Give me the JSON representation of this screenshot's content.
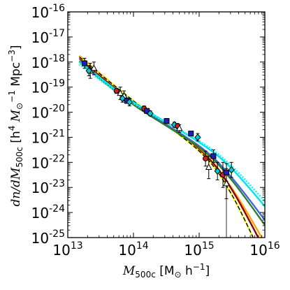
{
  "chart_data": {
    "type": "line",
    "title": "",
    "x_scale": "log",
    "y_scale": "log",
    "xlim": [
      10000000000000.0,
      1e+16
    ],
    "ylim": [
      1e-25,
      1e-16
    ],
    "xlabel": {
      "lead": "M",
      "sub": "500c",
      "open": " [M",
      "sun_sub": "⊙",
      "unit": " h",
      "exp": "−1",
      "close": "]"
    },
    "ylabel": {
      "lead": "dn/dM",
      "sub": "500c",
      "open": " [h",
      "h_exp": "4",
      "M": " M",
      "sun_sub": "⊙",
      "M_exp": "−1",
      "mid": " Mpc",
      "mpc_exp": "−3",
      "close": "]"
    },
    "x_ticks": [
      {
        "value": 10000000000000.0,
        "base": "10",
        "exp": "13"
      },
      {
        "value": 100000000000000.0,
        "base": "10",
        "exp": "14"
      },
      {
        "value": 1000000000000000.0,
        "base": "10",
        "exp": "15"
      },
      {
        "value": 1e+16,
        "base": "10",
        "exp": "16"
      }
    ],
    "y_ticks": [
      {
        "value": 1e-16,
        "base": "10",
        "exp": "-16"
      },
      {
        "value": 1e-17,
        "base": "10",
        "exp": "-17"
      },
      {
        "value": 1e-18,
        "base": "10",
        "exp": "-18"
      },
      {
        "value": 1e-19,
        "base": "10",
        "exp": "-19"
      },
      {
        "value": 1e-20,
        "base": "10",
        "exp": "-20"
      },
      {
        "value": 1e-21,
        "base": "10",
        "exp": "-21"
      },
      {
        "value": 1e-22,
        "base": "10",
        "exp": "-22"
      },
      {
        "value": 1e-23,
        "base": "10",
        "exp": "-23"
      },
      {
        "value": 1e-24,
        "base": "10",
        "exp": "-24"
      },
      {
        "value": 1e-25,
        "base": "10",
        "exp": "-25"
      }
    ],
    "grid": false,
    "legend": "none",
    "curves": [
      {
        "color": "#ffa500",
        "style": "solid",
        "points": [
          [
            15000000000000.0,
            -17.75
          ],
          [
            100000000000000.0,
            -19.55
          ],
          [
            1000000000000000.0,
            -21.45
          ],
          [
            3000000000000000.0,
            -22.95
          ],
          [
            1e+16,
            -25.2
          ]
        ]
      },
      {
        "color": "#8b0000",
        "style": "solid",
        "points": [
          [
            15000000000000.0,
            -17.85
          ],
          [
            100000000000000.0,
            -19.6
          ],
          [
            1000000000000000.0,
            -21.5
          ],
          [
            3000000000000000.0,
            -23.0
          ],
          [
            1e+16,
            -25.5
          ]
        ]
      },
      {
        "color": "#ffff00",
        "style": "dashed",
        "points": [
          [
            15000000000000.0,
            -17.8
          ],
          [
            100000000000000.0,
            -19.55
          ],
          [
            1000000000000000.0,
            -21.55
          ],
          [
            3000000000000000.0,
            -23.2
          ],
          [
            1e+16,
            -26.0
          ]
        ]
      },
      {
        "color": "#4169e1",
        "style": "solid",
        "points": [
          [
            15000000000000.0,
            -17.95
          ],
          [
            100000000000000.0,
            -19.65
          ],
          [
            1000000000000000.0,
            -21.35
          ],
          [
            3000000000000000.0,
            -22.55
          ],
          [
            1e+16,
            -24.3
          ]
        ]
      },
      {
        "color": "#2e7d32",
        "style": "solid",
        "points": [
          [
            15000000000000.0,
            -18.0
          ],
          [
            100000000000000.0,
            -19.7
          ],
          [
            1000000000000000.0,
            -21.4
          ],
          [
            3000000000000000.0,
            -22.65
          ],
          [
            1e+16,
            -24.5
          ]
        ]
      },
      {
        "color": "#00e5ee",
        "style": "solid",
        "points": [
          [
            15000000000000.0,
            -18.0
          ],
          [
            100000000000000.0,
            -19.6
          ],
          [
            1000000000000000.0,
            -21.2
          ],
          [
            3000000000000000.0,
            -22.2
          ],
          [
            1e+16,
            -23.75
          ]
        ]
      },
      {
        "color": "#00ffff",
        "style": "dotted",
        "points": [
          [
            15000000000000.0,
            -18.1
          ],
          [
            100000000000000.0,
            -19.65
          ],
          [
            1000000000000000.0,
            -21.15
          ],
          [
            3000000000000000.0,
            -22.1
          ],
          [
            1e+16,
            -23.55
          ]
        ]
      }
    ],
    "points": [
      {
        "series": "squares",
        "marker": "square",
        "color": "#1f1fbf",
        "x": 18000000000000.0,
        "y": -18.05,
        "err": 0.2
      },
      {
        "series": "triangles",
        "marker": "triangle",
        "color": "#ffffff",
        "x": 22000000000000.0,
        "y": -18.35,
        "err": 0.3
      },
      {
        "series": "triangles",
        "marker": "triangle",
        "color": "#ffffff",
        "x": 25000000000000.0,
        "y": -18.25,
        "err": 0.25
      },
      {
        "series": "diamonds",
        "marker": "diamond",
        "color": "#00cccc",
        "x": 21000000000000.0,
        "y": -18.35,
        "err": 0.2
      },
      {
        "series": "circles",
        "marker": "circle",
        "color": "#cc2222",
        "x": 55000000000000.0,
        "y": -19.15,
        "err": 0.1
      },
      {
        "series": "triangles",
        "marker": "triangle",
        "color": "#ffffff",
        "x": 63000000000000.0,
        "y": -19.25,
        "err": 0.25
      },
      {
        "series": "triangles",
        "marker": "triangle",
        "color": "#ffffff",
        "x": 72000000000000.0,
        "y": -19.35,
        "err": 0.2
      },
      {
        "series": "diamonds",
        "marker": "diamond",
        "color": "#00cccc",
        "x": 68000000000000.0,
        "y": -19.45,
        "err": 0.15
      },
      {
        "series": "squares",
        "marker": "square",
        "color": "#1f1fbf",
        "x": 80000000000000.0,
        "y": -19.55,
        "err": 0.1
      },
      {
        "series": "diamonds",
        "marker": "diamond",
        "color": "#00cccc",
        "x": 87000000000000.0,
        "y": -19.6,
        "err": 0.15
      },
      {
        "series": "circles",
        "marker": "circle",
        "color": "#cc2222",
        "x": 145000000000000.0,
        "y": -19.85,
        "err": 0.1
      },
      {
        "series": "squares",
        "marker": "square",
        "color": "#1f1fbf",
        "x": 160000000000000.0,
        "y": -19.95,
        "err": 0.1
      },
      {
        "series": "diamonds",
        "marker": "diamond",
        "color": "#00cccc",
        "x": 180000000000000.0,
        "y": -20.05,
        "err": 0.1
      },
      {
        "series": "squares",
        "marker": "square",
        "color": "#1f1fbf",
        "x": 320000000000000.0,
        "y": -20.35,
        "err": 0.1
      },
      {
        "series": "diamonds",
        "marker": "diamond",
        "color": "#00cccc",
        "x": 420000000000000.0,
        "y": -20.5,
        "err": 0.1
      },
      {
        "series": "circles",
        "marker": "circle",
        "color": "#cc2222",
        "x": 470000000000000.0,
        "y": -20.55,
        "err": 0.1
      },
      {
        "series": "triangles",
        "marker": "triangle",
        "color": "#ffffff",
        "x": 500000000000000.0,
        "y": -20.65,
        "err": 0.15
      },
      {
        "series": "squares",
        "marker": "square",
        "color": "#1f1fbf",
        "x": 750000000000000.0,
        "y": -20.85,
        "err": 0.1
      },
      {
        "series": "diamonds",
        "marker": "diamond",
        "color": "#00cccc",
        "x": 950000000000000.0,
        "y": -21.0,
        "err": 0.15
      },
      {
        "series": "circles",
        "marker": "circle",
        "color": "#cc2222",
        "x": 1250000000000000.0,
        "y": -21.85,
        "err": 0.3
      },
      {
        "series": "triangles",
        "marker": "triangle",
        "color": "#ffffff",
        "x": 1400000000000000.0,
        "y": -22.2,
        "err": 0.45
      },
      {
        "series": "squares",
        "marker": "square",
        "color": "#1f1fbf",
        "x": 1650000000000000.0,
        "y": -21.75,
        "err": 0.25
      },
      {
        "series": "diamonds",
        "marker": "diamond",
        "color": "#00cccc",
        "x": 1900000000000000.0,
        "y": -22.35,
        "err": 0.35
      },
      {
        "series": "circles",
        "marker": "circle",
        "color": "#cc2222",
        "x": 2300000000000000.0,
        "y": -22.5,
        "err": 0.5
      },
      {
        "series": "triangles",
        "marker": "triangle",
        "color": "#ffffff",
        "x": 2600000000000000.0,
        "y": -22.85,
        "err": 0.6
      },
      {
        "series": "squares",
        "marker": "square",
        "color": "#1f1fbf",
        "x": 2600000000000000.0,
        "y": -22.4,
        "err": 0.35
      },
      {
        "series": "diamonds",
        "marker": "diamond",
        "color": "#00cccc",
        "x": 3100000000000000.0,
        "y": -22.3,
        "err": 0.3
      }
    ],
    "upper_limit_line": {
      "x": 2600000000000000.0,
      "y_from": -22.85,
      "y_to": -25
    }
  }
}
